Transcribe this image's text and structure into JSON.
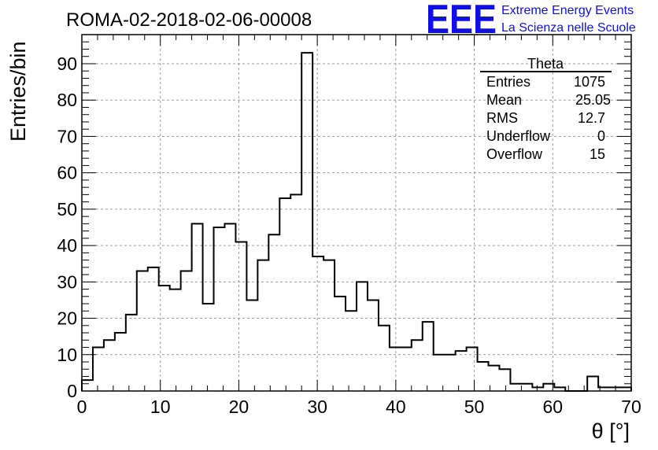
{
  "chart_data": {
    "type": "histogram",
    "title": "ROMA-02-2018-02-06-00008",
    "xlabel": "θ [°]",
    "ylabel": "Entries/bin",
    "xlim": [
      0,
      70
    ],
    "ylim": [
      0,
      98
    ],
    "xticks": [
      0,
      10,
      20,
      30,
      40,
      50,
      60,
      70
    ],
    "yticks": [
      0,
      10,
      20,
      30,
      40,
      50,
      60,
      70,
      80,
      90
    ],
    "grid": true,
    "bin_width": 1.4,
    "bin_edges_start": 0,
    "values": [
      3,
      12,
      14,
      16,
      21,
      33,
      34,
      29,
      28,
      33,
      46,
      24,
      45,
      46,
      41,
      25,
      36,
      43,
      53,
      54,
      93,
      37,
      36,
      26,
      22,
      30,
      25,
      18,
      12,
      12,
      14,
      19,
      10,
      10,
      11,
      12,
      8,
      7,
      6,
      2,
      2,
      1,
      2,
      1,
      0,
      0,
      4,
      1,
      1,
      1
    ]
  },
  "stats_box": {
    "title": "Theta",
    "rows": [
      {
        "label": "Entries",
        "value": "1075"
      },
      {
        "label": "Mean",
        "value": "25.05"
      },
      {
        "label": "RMS",
        "value": "12.7"
      },
      {
        "label": "Underflow",
        "value": "0"
      },
      {
        "label": "Overflow",
        "value": "15"
      }
    ]
  },
  "logo": {
    "mark": "EEE",
    "line1": "Extreme Energy Events",
    "line2": "La Scienza nelle Scuole",
    "color": "#1010e6"
  }
}
